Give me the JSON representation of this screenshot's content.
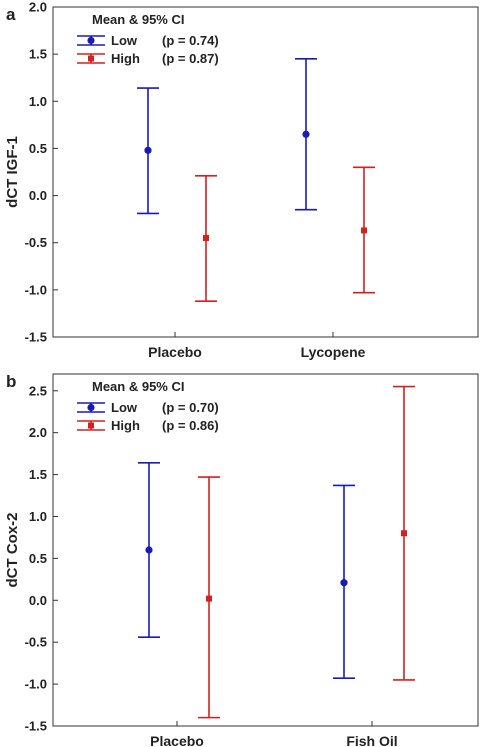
{
  "chart_data": [
    {
      "type": "errorbar",
      "panel_label": "a",
      "ylabel": "dCT IGF-1",
      "ylim": [
        -1.5,
        2.0
      ],
      "yticks": [
        -1.5,
        -1.0,
        -0.5,
        0.0,
        0.5,
        1.0,
        1.5,
        2.0
      ],
      "ytick_labels": [
        "-1.5",
        "-1.0",
        "-0.5",
        "0.0",
        "0.5",
        "1.0",
        "1.5",
        "2.0"
      ],
      "categories": [
        "Placebo",
        "Lycopene"
      ],
      "legend_title": "Mean & 95% CI",
      "legend_position": "top-left",
      "grid": false,
      "series": [
        {
          "name": "Low",
          "p_label": "(p = 0.74)",
          "color": "#1a1ab8",
          "marker": "circle",
          "mean": [
            0.48,
            0.65
          ],
          "lower": [
            -0.19,
            -0.15
          ],
          "upper": [
            1.14,
            1.45
          ]
        },
        {
          "name": "High",
          "p_label": "(p = 0.87)",
          "color": "#d42020",
          "marker": "square",
          "mean": [
            -0.45,
            -0.37
          ],
          "lower": [
            -1.12,
            -1.03
          ],
          "upper": [
            0.21,
            0.3
          ]
        }
      ]
    },
    {
      "type": "errorbar",
      "panel_label": "b",
      "ylabel": "dCT Cox-2",
      "ylim": [
        -1.5,
        2.7
      ],
      "yticks": [
        -1.5,
        -1.0,
        -0.5,
        0.0,
        0.5,
        1.0,
        1.5,
        2.0,
        2.5
      ],
      "ytick_labels": [
        "-1.5",
        "-1.0",
        "-0.5",
        "0.0",
        "0.5",
        "1.0",
        "1.5",
        "2.0",
        "2.5"
      ],
      "categories": [
        "Placebo",
        "Fish Oil"
      ],
      "legend_title": "Mean & 95% CI",
      "legend_position": "top-left",
      "grid": false,
      "series": [
        {
          "name": "Low",
          "p_label": "(p = 0.70)",
          "color": "#1a1ab8",
          "marker": "circle",
          "mean": [
            0.6,
            0.21
          ],
          "lower": [
            -0.44,
            -0.93
          ],
          "upper": [
            1.64,
            1.37
          ]
        },
        {
          "name": "High",
          "p_label": "(p = 0.86)",
          "color": "#d42020",
          "marker": "square",
          "mean": [
            0.02,
            0.8
          ],
          "lower": [
            -1.4,
            -0.95
          ],
          "upper": [
            1.47,
            2.55
          ]
        }
      ]
    }
  ]
}
